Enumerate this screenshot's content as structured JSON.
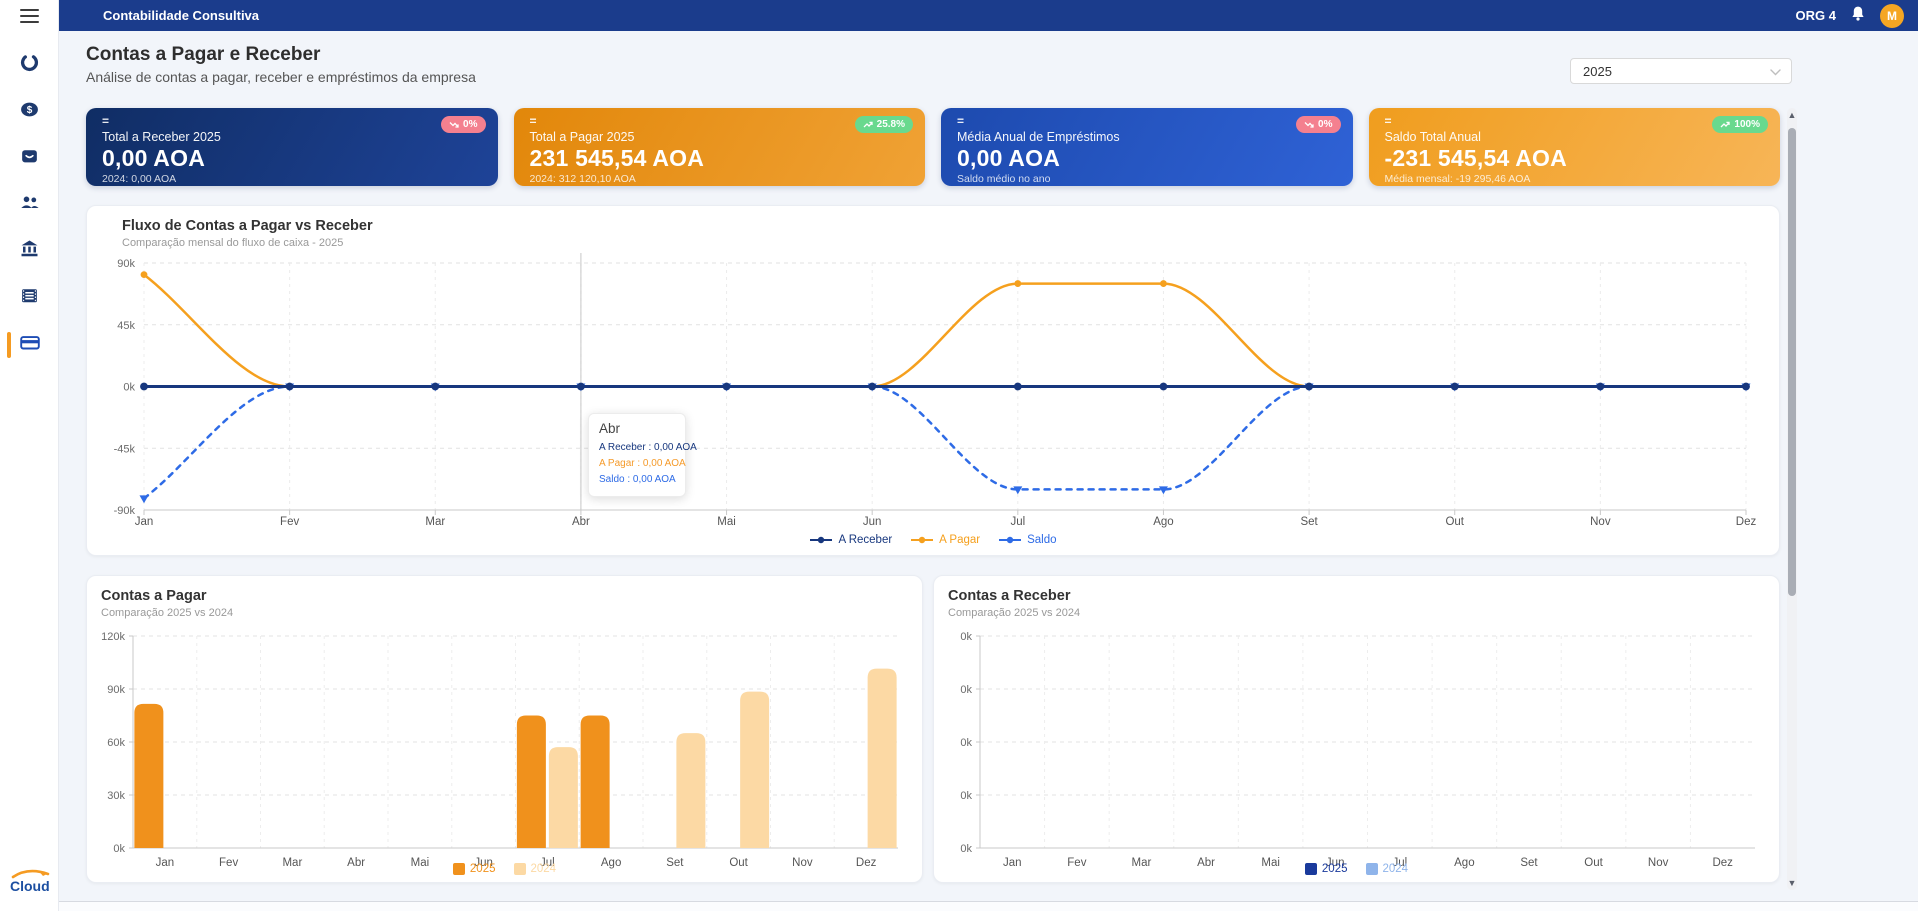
{
  "navbar": {
    "title": "Contabilidade Consultiva",
    "org_label": "ORG 4",
    "avatar_initial": "M"
  },
  "sidebar": {
    "logo_text": "Cloud"
  },
  "header": {
    "title": "Contas a Pagar e Receber",
    "subtitle": "Análise de contas a pagar, receber e empréstimos da empresa"
  },
  "filters": {
    "year": "2025"
  },
  "icons": {
    "drag": "=",
    "scroll_up": "▲",
    "scroll_down": "▼"
  },
  "kpi_cards": [
    {
      "label": "Total a Receber 2025",
      "value": "0,00 AOA",
      "subtext": "2024: 0,00 AOA",
      "badge": "0%",
      "trend": "down",
      "theme": "navy"
    },
    {
      "label": "Total a Pagar 2025",
      "value": "231 545,54 AOA",
      "subtext": "2024: 312 120,10 AOA",
      "badge": "25.8%",
      "trend": "up",
      "theme": "orange"
    },
    {
      "label": "Média Anual de Empréstimos",
      "value": "0,00 AOA",
      "subtext": "Saldo médio no ano",
      "badge": "0%",
      "trend": "down",
      "theme": "blue"
    },
    {
      "label": "Saldo Total Anual",
      "value": "-231 545,54 AOA",
      "subtext": "Média mensal: -19 295,46 AOA",
      "badge": "100%",
      "trend": "up",
      "theme": "orange-light"
    }
  ],
  "tooltip": {
    "title": "Abr",
    "rows": [
      {
        "text": "A Receber : 0,00 AOA",
        "color": "#17377e"
      },
      {
        "text": "A Pagar : 0,00 AOA",
        "color": "#f59b2b"
      },
      {
        "text": "Saldo : 0,00 AOA",
        "color": "#2e6be6"
      }
    ]
  },
  "chart_data": [
    {
      "id": "flow",
      "type": "line",
      "title": "Fluxo de Contas a Pagar vs Receber",
      "subtitle": "Comparação mensal do fluxo de caixa - 2025",
      "categories": [
        "Jan",
        "Fev",
        "Mar",
        "Abr",
        "Mai",
        "Jun",
        "Jul",
        "Ago",
        "Set",
        "Out",
        "Nov",
        "Dez"
      ],
      "ylim": [
        -90000,
        90000
      ],
      "yticks": [
        "90k",
        "45k",
        "0k",
        "-45k",
        "-90k"
      ],
      "grid": true,
      "legend_position": "bottom",
      "hover_month": "Abr",
      "series": [
        {
          "name": "A Receber",
          "color": "#17377e",
          "line": "solid",
          "marker": "circle",
          "values": [
            0,
            0,
            0,
            0,
            0,
            0,
            0,
            0,
            0,
            0,
            0,
            0
          ]
        },
        {
          "name": "A Pagar",
          "color": "#f5a01e",
          "line": "solid",
          "marker": "circle",
          "values": [
            81545.54,
            0,
            0,
            0,
            0,
            0,
            75000,
            75000,
            0,
            0,
            0,
            0
          ]
        },
        {
          "name": "Saldo",
          "color": "#2e6be6",
          "line": "dashed",
          "marker": "triangle-down",
          "values": [
            -81545.54,
            0,
            0,
            0,
            0,
            0,
            -75000,
            -75000,
            0,
            0,
            0,
            0
          ]
        }
      ]
    },
    {
      "id": "payables",
      "type": "bar",
      "title": "Contas a Pagar",
      "subtitle": "Comparação 2025 vs 2024",
      "categories": [
        "Jan",
        "Fev",
        "Mar",
        "Abr",
        "Mai",
        "Jun",
        "Jul",
        "Ago",
        "Set",
        "Out",
        "Nov",
        "Dez"
      ],
      "ylim": [
        0,
        120000
      ],
      "yticks": [
        "120k",
        "90k",
        "60k",
        "30k",
        "0k"
      ],
      "grid": true,
      "legend_position": "bottom",
      "series": [
        {
          "name": "2025",
          "color": "#f0911c",
          "values": [
            81545.54,
            0,
            0,
            0,
            0,
            0,
            75000,
            75000,
            0,
            0,
            0,
            0
          ]
        },
        {
          "name": "2024",
          "color": "#fcd9a4",
          "values": [
            0,
            0,
            0,
            0,
            0,
            0,
            57120.1,
            0,
            65000,
            88500,
            0,
            101500
          ]
        }
      ]
    },
    {
      "id": "receivables",
      "type": "bar",
      "title": "Contas a Receber",
      "subtitle": "Comparação 2025 vs 2024",
      "categories": [
        "Jan",
        "Fev",
        "Mar",
        "Abr",
        "Mai",
        "Jun",
        "Jul",
        "Ago",
        "Set",
        "Out",
        "Nov",
        "Dez"
      ],
      "ylim": [
        0,
        1
      ],
      "yticks": [
        "0k",
        "0k",
        "0k",
        "0k",
        "0k"
      ],
      "grid": true,
      "legend_position": "bottom",
      "series": [
        {
          "name": "2025",
          "color": "#1a3a9c",
          "values": [
            0,
            0,
            0,
            0,
            0,
            0,
            0,
            0,
            0,
            0,
            0,
            0
          ]
        },
        {
          "name": "2024",
          "color": "#8fb4ea",
          "values": [
            0,
            0,
            0,
            0,
            0,
            0,
            0,
            0,
            0,
            0,
            0,
            0
          ]
        }
      ]
    }
  ]
}
